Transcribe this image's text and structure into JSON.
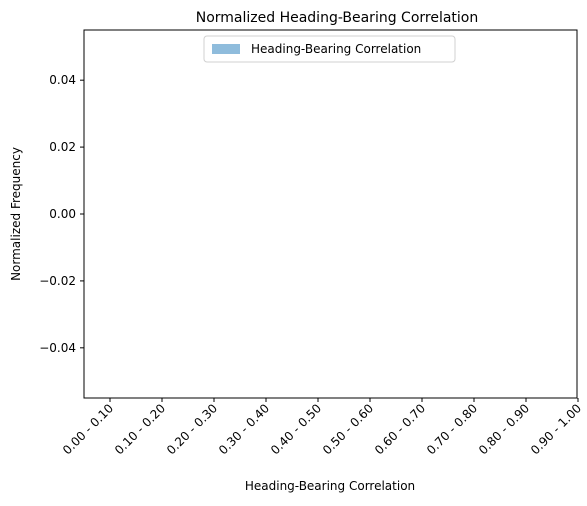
{
  "chart_data": {
    "type": "bar",
    "title": "Normalized Heading-Bearing Correlation",
    "xlabel": "Heading-Bearing Correlation",
    "ylabel": "Normalized Frequency",
    "categories": [
      "0.00 - 0.10",
      "0.10 - 0.20",
      "0.20 - 0.30",
      "0.30 - 0.40",
      "0.40 - 0.50",
      "0.50 - 0.60",
      "0.60 - 0.70",
      "0.70 - 0.80",
      "0.80 - 0.90",
      "0.90 - 1.00"
    ],
    "series": [
      {
        "name": "Heading-Bearing Correlation",
        "values": [
          0,
          0,
          0,
          0,
          0,
          0,
          0,
          0,
          0,
          0
        ],
        "color": "#8fbcdc"
      }
    ],
    "ylim": [
      -0.055,
      0.055
    ],
    "yticks": [
      {
        "value": 0.04,
        "label": "0.04"
      },
      {
        "value": 0.02,
        "label": "0.02"
      },
      {
        "value": 0.0,
        "label": "0.00"
      },
      {
        "value": -0.02,
        "label": "−0.02"
      },
      {
        "value": -0.04,
        "label": "−0.04"
      }
    ],
    "legend_position": "top-center",
    "grid": false
  }
}
